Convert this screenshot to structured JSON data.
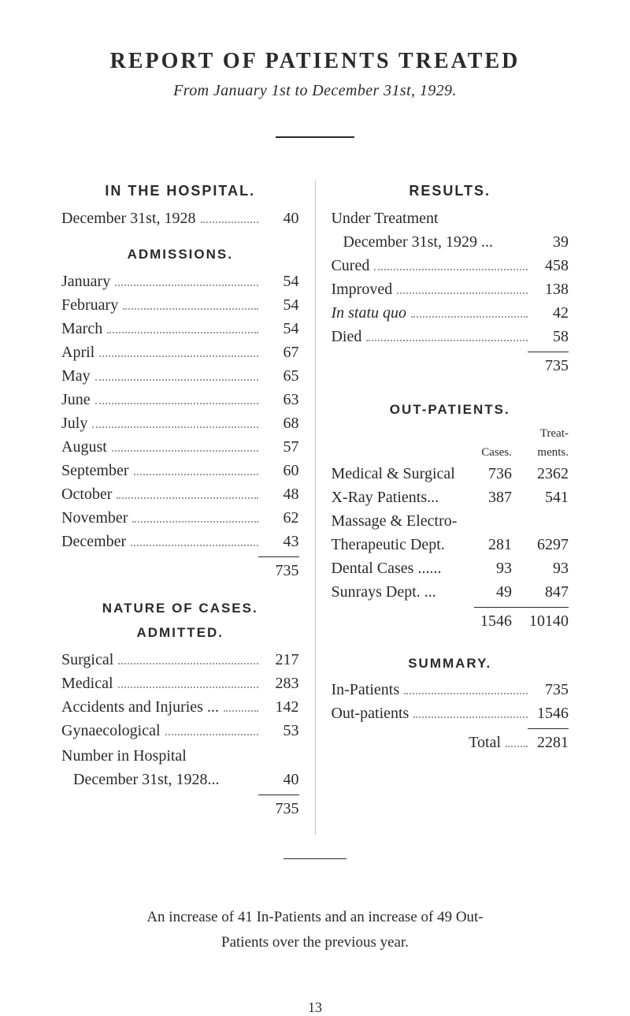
{
  "title": "REPORT  OF  PATIENTS  TREATED",
  "subtitle": "From January 1st to December 31st, 1929.",
  "left": {
    "in_hospital_head": "IN THE HOSPITAL.",
    "in_hospital_row": {
      "label": "December 31st, 1928",
      "value": "40"
    },
    "admissions_head": "ADMISSIONS.",
    "admissions": [
      {
        "label": "January",
        "value": "54"
      },
      {
        "label": "February",
        "value": "54"
      },
      {
        "label": "March",
        "value": "54"
      },
      {
        "label": "April",
        "value": "67"
      },
      {
        "label": "May",
        "value": "65"
      },
      {
        "label": "June",
        "value": "63"
      },
      {
        "label": "July",
        "value": "68"
      },
      {
        "label": "August",
        "value": "57"
      },
      {
        "label": "September",
        "value": "60"
      },
      {
        "label": "October",
        "value": "48"
      },
      {
        "label": "November",
        "value": "62"
      },
      {
        "label": "December",
        "value": "43"
      }
    ],
    "admissions_total": "735",
    "nature_head1": "NATURE OF CASES.",
    "nature_head2": "ADMITTED.",
    "nature": [
      {
        "label": "Surgical",
        "value": "217"
      },
      {
        "label": "Medical",
        "value": "283"
      },
      {
        "label": "Accidents and Injuries ...",
        "value": "142"
      },
      {
        "label": "Gynaecological",
        "value": "53"
      }
    ],
    "nih_label": "Number in Hospital",
    "nih_sub": "   December 31st, 1928...",
    "nih_value": "40",
    "nature_total": "735"
  },
  "right": {
    "results_head": "RESULTS.",
    "ut_label": "Under Treatment",
    "ut_sub": "   December 31st, 1929 ...",
    "ut_value": "39",
    "results": [
      {
        "label": "Cured",
        "value": "458"
      },
      {
        "label": "Improved",
        "value": "138"
      },
      {
        "label": "In  statu  quo",
        "italic": true,
        "value": "42"
      },
      {
        "label": "Died",
        "value": "58"
      }
    ],
    "results_total": "735",
    "outp_head": "OUT-PATIENTS.",
    "outp_h1a": "",
    "outp_h1b": "Treat-",
    "outp_h2a": "Cases.",
    "outp_h2b": "ments.",
    "outp": [
      {
        "label": "Medical & Surgical",
        "v1": "736",
        "v2": "2362"
      },
      {
        "label": "X-Ray  Patients...",
        "v1": "387",
        "v2": "541"
      },
      {
        "label": "Massage & Electro-",
        "v1": "",
        "v2": ""
      },
      {
        "label": "Therapeutic Dept.",
        "v1": "281",
        "v2": "6297"
      },
      {
        "label": "Dental Cases ......",
        "v1": "93",
        "v2": "93"
      },
      {
        "label": "Sunrays  Dept. ...",
        "v1": "49",
        "v2": "847"
      }
    ],
    "outp_total_v1": "1546",
    "outp_total_v2": "10140",
    "summary_head": "SUMMARY.",
    "summary": [
      {
        "label": "In-Patients",
        "value": "735"
      },
      {
        "label": "Out-patients",
        "value": "1546"
      }
    ],
    "grand_label": "Total",
    "grand_value": "2281"
  },
  "footnote1": "An increase of 41 In-Patients and an increase of 49 Out-",
  "footnote2": "Patients over the previous year.",
  "pagenum": "13",
  "style": {
    "background_color": "#ffffff",
    "text_color": "#2a2a2a",
    "divider_color": "#bdbdbd",
    "dot_color": "#9a9a9a",
    "title_fontsize": 28,
    "body_fontsize": 20,
    "head_fontsize": 18
  }
}
